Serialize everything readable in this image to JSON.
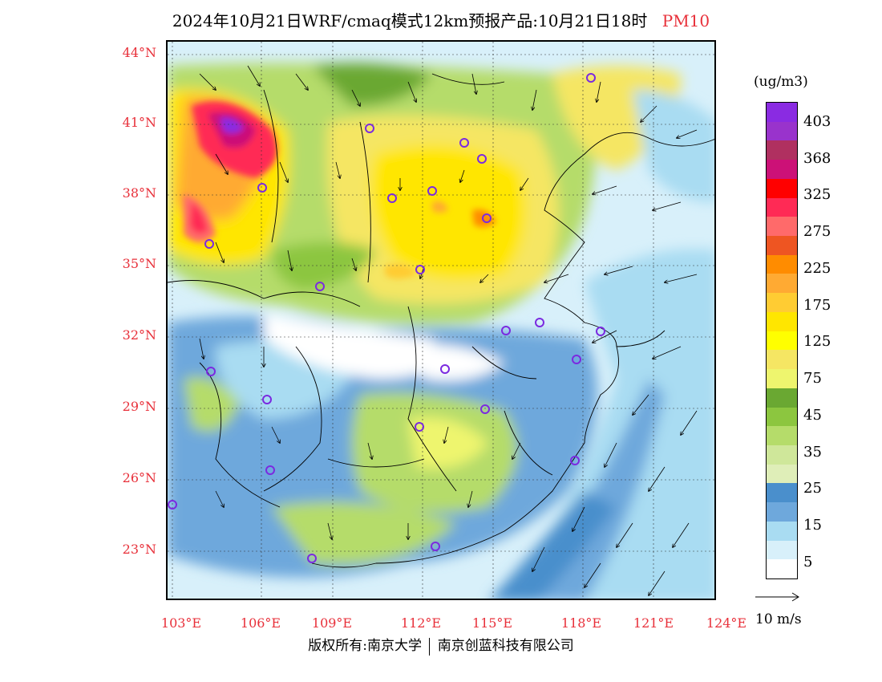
{
  "title": {
    "main": "2024年10月21日WRF/cmaq模式12km预报产品:10月21日18时",
    "pollutant": "PM10"
  },
  "axes": {
    "y_labels": [
      "44°N",
      "41°N",
      "38°N",
      "35°N",
      "32°N",
      "29°N",
      "26°N",
      "23°N"
    ],
    "x_labels": [
      "103°E",
      "106°E",
      "109°E",
      "112°E",
      "115°E",
      "118°E",
      "121°E",
      "124°E"
    ]
  },
  "colorbar": {
    "unit": "(ug/m3)",
    "labels": [
      "403",
      "368",
      "325",
      "275",
      "225",
      "175",
      "125",
      "75",
      "45",
      "35",
      "25",
      "15",
      "5"
    ],
    "colors": [
      "#8a2be2",
      "#9933cc",
      "#b03060",
      "#cc1177",
      "#ff0000",
      "#ff2a55",
      "#ff6a6a",
      "#ee5522",
      "#ff8c00",
      "#ffaa33",
      "#ffcc33",
      "#ffe600",
      "#ffff00",
      "#f5e663",
      "#eef56e",
      "#6aa832",
      "#8cc63f",
      "#b5dc6a",
      "#cfe79a",
      "#dfeeb8",
      "#4a8fcc",
      "#6ea8dc",
      "#a9dcf2",
      "#d8f0fa",
      "#ffffff"
    ],
    "colors_top_to_bottom": [
      "#8a2be2",
      "#9933cc",
      "#b03060",
      "#cc1177",
      "#ff0000",
      "#ff2a55",
      "#ff6a6a",
      "#ee5522",
      "#ff8c00",
      "#ffaa33",
      "#ffcc33",
      "#ffe600",
      "#ffff00",
      "#f5e663",
      "#eef56e",
      "#6aa832",
      "#8cc63f",
      "#b5dc6a",
      "#cfe79a",
      "#dfeeb8",
      "#4a8fcc",
      "#6ea8dc",
      "#a9dcf2",
      "#d8f0fa",
      "#ffffff"
    ]
  },
  "wind_legend": {
    "label": "10 m/s"
  },
  "footer": {
    "copyright": "版权所有:南京大学",
    "company": "南京创蓝科技有限公司"
  },
  "accent_color": "#e8303a"
}
